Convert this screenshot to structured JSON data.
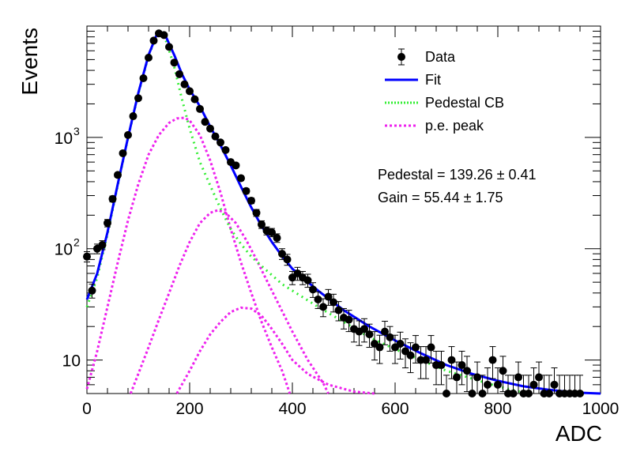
{
  "chart_data": {
    "type": "scatter",
    "xlabel": "ADC",
    "ylabel": "Events",
    "xlim": [
      0,
      1000
    ],
    "ylim": [
      5,
      10000
    ],
    "y_scale": "log",
    "grid": false,
    "legend_position": "top-right",
    "x_ticks": [
      {
        "value": 0,
        "label": "0"
      },
      {
        "value": 200,
        "label": "200"
      },
      {
        "value": 400,
        "label": "400"
      },
      {
        "value": 600,
        "label": "600"
      },
      {
        "value": 800,
        "label": "800"
      },
      {
        "value": 1000,
        "label": "1000"
      }
    ],
    "y_ticks": [
      {
        "value": 10,
        "label": "10"
      },
      {
        "value": 100,
        "label": "10",
        "exp": "2"
      },
      {
        "value": 1000,
        "label": "10",
        "exp": "3"
      }
    ],
    "legend": [
      {
        "label": "Data",
        "style": "marker",
        "color": "#000000"
      },
      {
        "label": "Fit",
        "style": "solid",
        "color": "#0000ff"
      },
      {
        "label": "Pedestal CB",
        "style": "dotted",
        "color": "#33ee33"
      },
      {
        "label": "p.e. peak",
        "style": "dashed",
        "color": "#ee22ee"
      }
    ],
    "annotations": [
      "Pedestal = 139.26 ± 0.41",
      "Gain = 55.44 ± 1.75"
    ],
    "colors": {
      "data": "#000000",
      "fit": "#0000ff",
      "pedestal": "#33ee33",
      "pe_peak": "#ee22ee"
    },
    "series": [
      {
        "name": "Data",
        "type": "scatter",
        "points": [
          [
            0,
            85,
            9
          ],
          [
            10,
            42,
            6
          ],
          [
            20,
            100,
            10
          ],
          [
            30,
            108,
            10
          ],
          [
            40,
            170,
            13
          ],
          [
            50,
            280,
            17
          ],
          [
            60,
            460,
            22
          ],
          [
            70,
            720,
            27
          ],
          [
            80,
            1050,
            33
          ],
          [
            90,
            1550,
            40
          ],
          [
            100,
            2250,
            48
          ],
          [
            110,
            3400,
            58
          ],
          [
            120,
            5200,
            72
          ],
          [
            130,
            7400,
            86
          ],
          [
            140,
            8600,
            93
          ],
          [
            150,
            8300,
            91
          ],
          [
            160,
            6500,
            81
          ],
          [
            170,
            4700,
            69
          ],
          [
            180,
            3700,
            61
          ],
          [
            190,
            3000,
            55
          ],
          [
            200,
            2600,
            51
          ],
          [
            210,
            2200,
            47
          ],
          [
            220,
            1800,
            42
          ],
          [
            230,
            1380,
            37
          ],
          [
            240,
            1200,
            35
          ],
          [
            250,
            1020,
            32
          ],
          [
            260,
            900,
            30
          ],
          [
            270,
            770,
            28
          ],
          [
            280,
            600,
            25
          ],
          [
            290,
            560,
            24
          ],
          [
            300,
            430,
            21
          ],
          [
            310,
            330,
            18
          ],
          [
            320,
            270,
            16
          ],
          [
            330,
            210,
            15
          ],
          [
            340,
            165,
            13
          ],
          [
            350,
            145,
            12
          ],
          [
            360,
            140,
            12
          ],
          [
            370,
            125,
            11
          ],
          [
            380,
            90,
            10
          ],
          [
            390,
            80,
            9
          ],
          [
            400,
            55,
            7.5
          ],
          [
            410,
            60,
            8
          ],
          [
            420,
            55,
            7.5
          ],
          [
            430,
            52,
            7
          ],
          [
            440,
            43,
            6.5
          ],
          [
            450,
            35,
            6
          ],
          [
            460,
            30,
            5.5
          ],
          [
            470,
            37,
            6
          ],
          [
            480,
            33,
            6
          ],
          [
            490,
            28,
            5.5
          ],
          [
            500,
            24,
            5
          ],
          [
            510,
            23,
            5
          ],
          [
            520,
            19,
            4.5
          ],
          [
            530,
            18,
            4.5
          ],
          [
            540,
            19,
            4.5
          ],
          [
            550,
            17,
            4
          ],
          [
            560,
            14,
            4
          ],
          [
            570,
            13,
            3.7
          ],
          [
            580,
            18,
            4.3
          ],
          [
            590,
            16,
            4
          ],
          [
            600,
            13,
            3.7
          ],
          [
            610,
            14,
            3.8
          ],
          [
            620,
            12,
            3.5
          ],
          [
            630,
            11,
            3.3
          ],
          [
            640,
            13,
            3.6
          ],
          [
            650,
            10,
            3.2
          ],
          [
            660,
            10,
            3.2
          ],
          [
            670,
            13,
            3.6
          ],
          [
            680,
            9,
            3
          ],
          [
            690,
            9,
            3
          ],
          [
            700,
            5,
            2.3
          ],
          [
            710,
            10,
            3.2
          ],
          [
            720,
            7,
            2.6
          ],
          [
            730,
            9,
            3
          ],
          [
            740,
            8,
            2.8
          ],
          [
            750,
            5,
            2.3
          ],
          [
            760,
            7,
            2.6
          ],
          [
            770,
            5,
            2.3
          ],
          [
            780,
            6,
            2.5
          ],
          [
            790,
            10,
            3.2
          ],
          [
            800,
            6,
            2.5
          ],
          [
            810,
            8,
            2.8
          ],
          [
            820,
            5,
            2.3
          ],
          [
            830,
            5,
            2.3
          ],
          [
            840,
            7,
            2.6
          ],
          [
            850,
            5,
            2.3
          ],
          [
            860,
            5,
            2.3
          ],
          [
            870,
            6,
            2.5
          ],
          [
            880,
            7,
            2.6
          ],
          [
            890,
            5,
            2.3
          ],
          [
            900,
            5,
            2.3
          ],
          [
            910,
            6,
            2.5
          ],
          [
            920,
            5,
            2.3
          ],
          [
            930,
            5,
            2.3
          ],
          [
            940,
            5,
            2.3
          ],
          [
            950,
            5,
            2.3
          ],
          [
            960,
            5,
            2.3
          ]
        ]
      },
      {
        "name": "Fit",
        "type": "line",
        "points": [
          [
            0,
            35
          ],
          [
            20,
            60
          ],
          [
            40,
            140
          ],
          [
            60,
            380
          ],
          [
            80,
            1000
          ],
          [
            100,
            2500
          ],
          [
            120,
            5500
          ],
          [
            135,
            8200
          ],
          [
            145,
            8700
          ],
          [
            155,
            7800
          ],
          [
            170,
            5500
          ],
          [
            185,
            3700
          ],
          [
            200,
            2700
          ],
          [
            220,
            1900
          ],
          [
            240,
            1250
          ],
          [
            260,
            850
          ],
          [
            280,
            560
          ],
          [
            300,
            360
          ],
          [
            320,
            235
          ],
          [
            340,
            160
          ],
          [
            360,
            115
          ],
          [
            380,
            86
          ],
          [
            400,
            66
          ],
          [
            450,
            42
          ],
          [
            500,
            28
          ],
          [
            550,
            20
          ],
          [
            600,
            15
          ],
          [
            650,
            11.5
          ],
          [
            700,
            9
          ],
          [
            750,
            7.5
          ],
          [
            800,
            6.5
          ],
          [
            850,
            5.8
          ],
          [
            900,
            5.4
          ],
          [
            950,
            5.1
          ],
          [
            1000,
            5.0
          ]
        ]
      },
      {
        "name": "Pedestal CB",
        "type": "line",
        "points": [
          [
            0,
            30
          ],
          [
            20,
            55
          ],
          [
            40,
            135
          ],
          [
            60,
            370
          ],
          [
            80,
            990
          ],
          [
            100,
            2450
          ],
          [
            120,
            5400
          ],
          [
            135,
            8000
          ],
          [
            145,
            8500
          ],
          [
            155,
            7200
          ],
          [
            170,
            4300
          ],
          [
            185,
            2200
          ],
          [
            200,
            1200
          ],
          [
            220,
            600
          ],
          [
            240,
            370
          ],
          [
            260,
            230
          ],
          [
            280,
            150
          ],
          [
            300,
            110
          ],
          [
            320,
            85
          ],
          [
            340,
            70
          ],
          [
            360,
            58
          ],
          [
            380,
            48
          ],
          [
            400,
            42
          ],
          [
            450,
            30
          ],
          [
            500,
            22
          ],
          [
            550,
            16
          ],
          [
            600,
            12.5
          ],
          [
            650,
            10
          ],
          [
            700,
            8
          ],
          [
            750,
            6.8
          ],
          [
            800,
            5.8
          ],
          [
            850,
            5.1
          ],
          [
            870,
            4.9
          ]
        ]
      },
      {
        "name": "p.e. peak 1",
        "type": "line",
        "points": [
          [
            0,
            5.5
          ],
          [
            20,
            12
          ],
          [
            40,
            30
          ],
          [
            60,
            75
          ],
          [
            80,
            180
          ],
          [
            100,
            380
          ],
          [
            120,
            700
          ],
          [
            140,
            1050
          ],
          [
            160,
            1350
          ],
          [
            175,
            1480
          ],
          [
            190,
            1500
          ],
          [
            200,
            1420
          ],
          [
            220,
            1050
          ],
          [
            240,
            620
          ],
          [
            260,
            320
          ],
          [
            280,
            150
          ],
          [
            300,
            75
          ],
          [
            320,
            40
          ],
          [
            340,
            22
          ],
          [
            360,
            13
          ],
          [
            380,
            8
          ],
          [
            395,
            5
          ]
        ]
      },
      {
        "name": "p.e. peak 2",
        "type": "line",
        "points": [
          [
            85,
            5
          ],
          [
            100,
            7.5
          ],
          [
            120,
            13
          ],
          [
            140,
            23
          ],
          [
            160,
            40
          ],
          [
            180,
            70
          ],
          [
            200,
            115
          ],
          [
            220,
            170
          ],
          [
            240,
            210
          ],
          [
            255,
            222
          ],
          [
            270,
            210
          ],
          [
            290,
            170
          ],
          [
            310,
            120
          ],
          [
            330,
            80
          ],
          [
            350,
            52
          ],
          [
            370,
            34
          ],
          [
            400,
            18
          ],
          [
            430,
            10
          ],
          [
            460,
            6.2
          ],
          [
            470,
            5
          ]
        ]
      },
      {
        "name": "p.e. peak 3",
        "type": "line",
        "points": [
          [
            175,
            5
          ],
          [
            200,
            8
          ],
          [
            220,
            12
          ],
          [
            240,
            17
          ],
          [
            260,
            22
          ],
          [
            280,
            27
          ],
          [
            300,
            29.5
          ],
          [
            320,
            29
          ],
          [
            340,
            25
          ],
          [
            360,
            19
          ],
          [
            380,
            14
          ],
          [
            400,
            10
          ],
          [
            430,
            7.5
          ],
          [
            470,
            6
          ],
          [
            520,
            5.2
          ],
          [
            560,
            5
          ]
        ]
      }
    ]
  }
}
